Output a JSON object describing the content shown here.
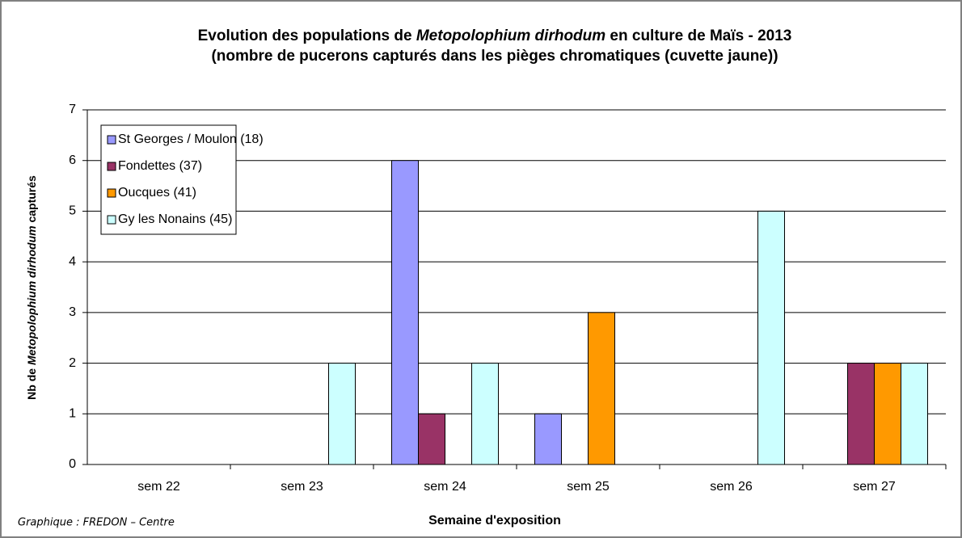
{
  "chart_data": {
    "type": "bar",
    "title": [
      "Evolution des populations de ",
      "Metopolophium dirhodum",
      " en culture de Maïs - 2013"
    ],
    "subtitle": "(nombre de pucerons capturés dans les pièges chromatiques (cuvette jaune))",
    "y_label": [
      "Nb de ",
      "Metopolophium dirhodum",
      " capturés"
    ],
    "x_label": "Semaine d'exposition",
    "footer": "Graphique : FREDON – Centre",
    "categories": [
      "sem 22",
      "sem 23",
      "sem 24",
      "sem 25",
      "sem 26",
      "sem 27"
    ],
    "series": [
      {
        "name": "St Georges / Moulon (18)",
        "color": "#9999ff",
        "values": [
          0,
          0,
          6,
          1,
          0,
          0
        ]
      },
      {
        "name": "Fondettes (37)",
        "color": "#993366",
        "values": [
          0,
          0,
          1,
          0,
          0,
          2
        ]
      },
      {
        "name": "Oucques (41)",
        "color": "#ff9900",
        "values": [
          0,
          0,
          0,
          3,
          0,
          2
        ]
      },
      {
        "name": "Gy les Nonains (45)",
        "color": "#ccffff",
        "values": [
          0,
          2,
          2,
          0,
          5,
          2
        ]
      }
    ],
    "ylim": [
      0,
      7
    ],
    "yticks": [
      0,
      1,
      2,
      3,
      4,
      5,
      6,
      7
    ],
    "grid": true,
    "legend": "upper left"
  }
}
